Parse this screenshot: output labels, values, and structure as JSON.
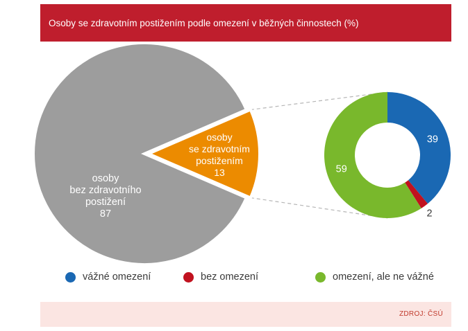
{
  "title": "Osoby se zdravotním postižením podle omezení v běžných činnostech (%)",
  "source": "ZDROJ: ČSÚ",
  "colors": {
    "title_bg": "#bf1e2d",
    "gray": "#9d9d9d",
    "orange": "#ec8b00",
    "blue": "#1a68b3",
    "red": "#c1121f",
    "green": "#79b82c",
    "footer_bg": "#fbe5e2"
  },
  "chart_data": [
    {
      "type": "pie",
      "slices": [
        {
          "lines": [
            "osoby",
            "bez zdravotního",
            "postižení"
          ],
          "value": 87,
          "color": "#9d9d9d"
        },
        {
          "lines": [
            "osoby",
            "se zdravotním",
            "postižením"
          ],
          "value": 13,
          "color": "#ec8b00"
        }
      ]
    },
    {
      "type": "pie",
      "donut": true,
      "slices": [
        {
          "name": "vážné omezení",
          "value": 39,
          "color": "#1a68b3"
        },
        {
          "name": "bez omezení",
          "value": 2,
          "color": "#c1121f"
        },
        {
          "name": "omezení, ale ne vážné",
          "value": 59,
          "color": "#79b82c"
        }
      ]
    }
  ]
}
